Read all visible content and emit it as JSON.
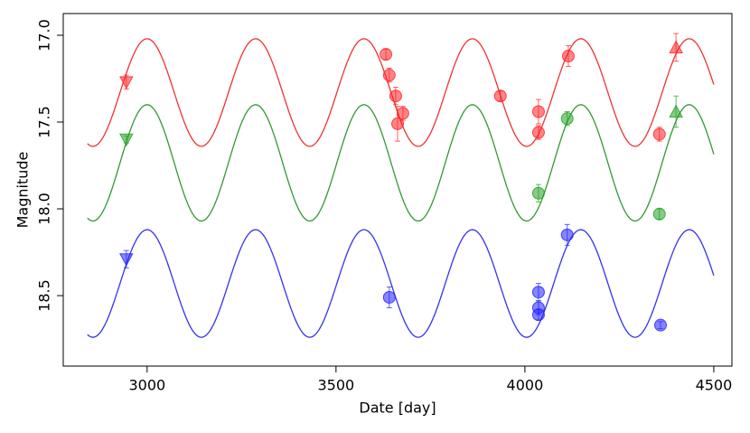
{
  "chart_data": {
    "type": "scatter",
    "xlabel": "Date [day]",
    "ylabel": "Magnitude",
    "xlim": [
      2778,
      4548
    ],
    "ylim": [
      16.875,
      18.906
    ],
    "y_inverted": true,
    "xticks": [
      3000,
      3500,
      4000,
      4500
    ],
    "yticks": [
      {
        "value": 17,
        "label": "17.0"
      },
      17.5,
      {
        "value": 18,
        "label": "18.0"
      },
      18.5
    ],
    "grid": false,
    "curves": [
      {
        "color": "#ee3333",
        "mean": 17.33,
        "amplitude": 0.31,
        "period": 287,
        "peak_date": 3000,
        "xrange": [
          2842,
          4500
        ]
      },
      {
        "color": "#339933",
        "mean": 17.735,
        "amplitude": 0.335,
        "period": 287,
        "peak_date": 3000,
        "xrange": [
          2842,
          4500
        ]
      },
      {
        "color": "#3333ee",
        "mean": 18.43,
        "amplitude": 0.31,
        "period": 287,
        "peak_date": 3000,
        "xrange": [
          2842,
          4500
        ]
      }
    ],
    "series": [
      {
        "color": "#ff2020",
        "x": [
          2945,
          3632,
          3641,
          3658,
          3663,
          3677,
          3935,
          4036,
          4036,
          4115,
          4356,
          4400
        ],
        "values": [
          17.27,
          17.11,
          17.23,
          17.35,
          17.51,
          17.45,
          17.35,
          17.44,
          17.56,
          17.12,
          17.57,
          17.07
        ],
        "errors": [
          0.04,
          0.03,
          0.04,
          0.05,
          0.1,
          0.04,
          0.03,
          0.07,
          0.04,
          0.06,
          0.04,
          0.08
        ],
        "markers": [
          "v",
          "o",
          "o",
          "o",
          "o",
          "o",
          "o",
          "o",
          "o",
          "o",
          "o",
          "^"
        ]
      },
      {
        "color": "#20a020",
        "x": [
          2945,
          4036,
          4112,
          4356,
          4400
        ],
        "values": [
          17.6,
          17.91,
          17.48,
          18.03,
          17.44
        ],
        "errors": [
          0.02,
          0.05,
          0.04,
          0.03,
          0.09
        ],
        "markers": [
          "v",
          "o",
          "o",
          "o",
          "^"
        ]
      },
      {
        "color": "#2020ff",
        "x": [
          2945,
          3641,
          4036,
          4036,
          4036,
          4112,
          4359
        ],
        "values": [
          18.29,
          18.51,
          18.48,
          18.57,
          18.61,
          18.15,
          18.67
        ],
        "errors": [
          0.05,
          0.06,
          0.05,
          0.04,
          0.03,
          0.06,
          0.02
        ],
        "markers": [
          "v",
          "o",
          "o",
          "o",
          "o",
          "o",
          "o"
        ]
      }
    ]
  }
}
